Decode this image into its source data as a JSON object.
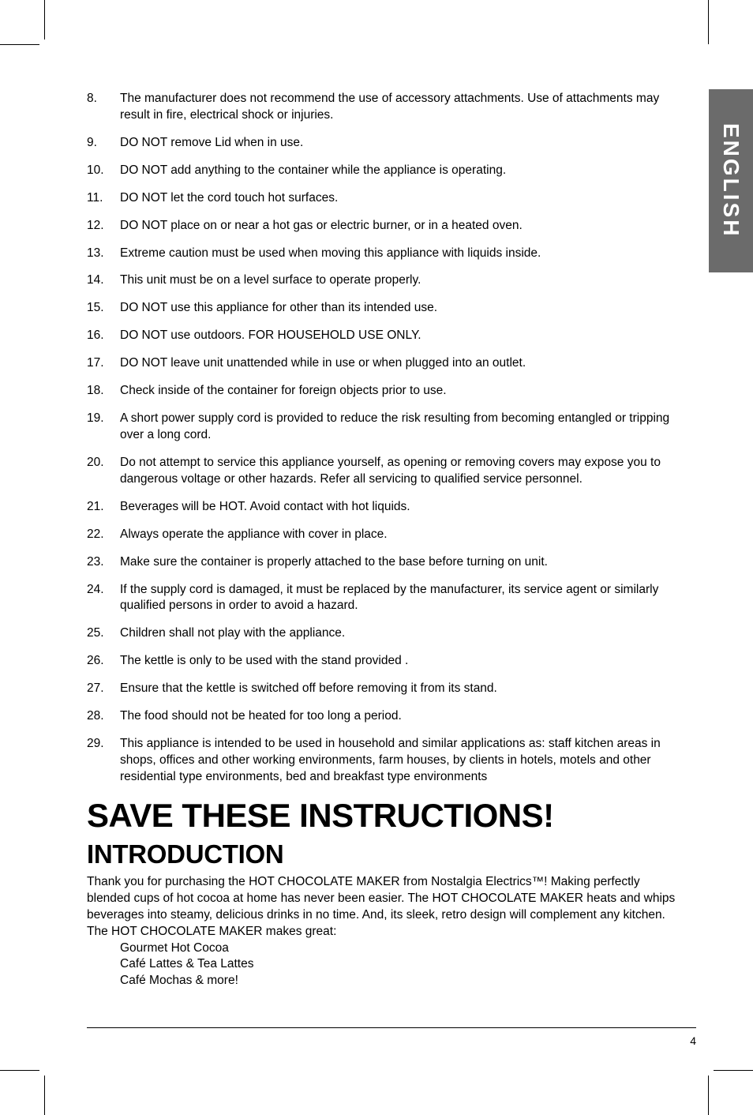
{
  "side_tab": {
    "label": "ENGLISH",
    "bg_color": "#6b6b6b",
    "text_color": "#ffffff"
  },
  "list": {
    "items": [
      {
        "n": "8.",
        "t": "The manufacturer does not recommend the use of accessory attachments. Use of attachments may result in fire, electrical shock or injuries."
      },
      {
        "n": "9.",
        "t": "DO NOT remove Lid when in use."
      },
      {
        "n": "10.",
        "t": "DO NOT add anything to the container while the appliance is operating."
      },
      {
        "n": "11.",
        "t": "DO NOT let the cord touch hot surfaces."
      },
      {
        "n": "12.",
        "t": "DO NOT place on or near a hot gas or electric burner, or in a heated oven."
      },
      {
        "n": "13.",
        "t": "Extreme caution must be used when moving this appliance with liquids inside."
      },
      {
        "n": "14.",
        "t": "This unit must be on a level surface to operate properly."
      },
      {
        "n": "15.",
        "t": "DO NOT use this appliance for other than its intended use."
      },
      {
        "n": "16.",
        "t": "DO NOT use outdoors. FOR HOUSEHOLD USE ONLY."
      },
      {
        "n": "17.",
        "t": "DO NOT leave unit unattended while in use or when plugged into an outlet."
      },
      {
        "n": "18.",
        "t": "Check inside of the container for foreign objects prior to use."
      },
      {
        "n": "19.",
        "t": "A short power supply cord is provided to reduce the risk resulting from becoming entangled or tripping over a long cord."
      },
      {
        "n": "20.",
        "t": "Do not attempt to service this appliance yourself, as opening or removing covers may expose you to dangerous voltage or other hazards. Refer all servicing to qualified service personnel."
      },
      {
        "n": "21.",
        "t": "Beverages will be HOT. Avoid contact with hot liquids."
      },
      {
        "n": "22.",
        "t": "Always operate the appliance with cover in place."
      },
      {
        "n": "23.",
        "t": "Make sure the container is properly attached to the base before turning on unit."
      },
      {
        "n": "24.",
        "t": "If the supply cord is damaged, it must be replaced by the manufacturer, its service agent or similarly qualified persons in order to avoid a hazard."
      },
      {
        "n": "25.",
        "t": "Children shall not play with the appliance."
      },
      {
        "n": "26.",
        "t": "The kettle is only to be used with the stand provided ."
      },
      {
        "n": "27.",
        "t": "Ensure that the kettle is switched off before removing it from its stand."
      },
      {
        "n": "28.",
        "t": "The food should not be heated for too long a period."
      },
      {
        "n": "29.",
        "t": "This appliance is intended to be used in household and similar applications as: staff kitchen areas in shops, offices and other working environments, farm houses, by clients in hotels, motels and other residential type environments, bed and breakfast type environments"
      }
    ]
  },
  "headings": {
    "save": "SAVE THESE INSTRUCTIONS!",
    "intro": "INTRODUCTION"
  },
  "intro_paragraph": "Thank you for purchasing the HOT CHOCOLATE MAKER from Nostalgia Electrics™! Making perfectly blended cups of hot cocoa at home has never been easier. The HOT CHOCOLATE MAKER heats and whips beverages into steamy, delicious drinks in no time. And, its sleek, retro design will complement any kitchen. The HOT CHOCOLATE MAKER makes great:",
  "intro_bullets": [
    "Gourmet Hot Cocoa",
    "Café Lattes & Tea Lattes",
    "Café Mochas & more!"
  ],
  "page_number": "4"
}
